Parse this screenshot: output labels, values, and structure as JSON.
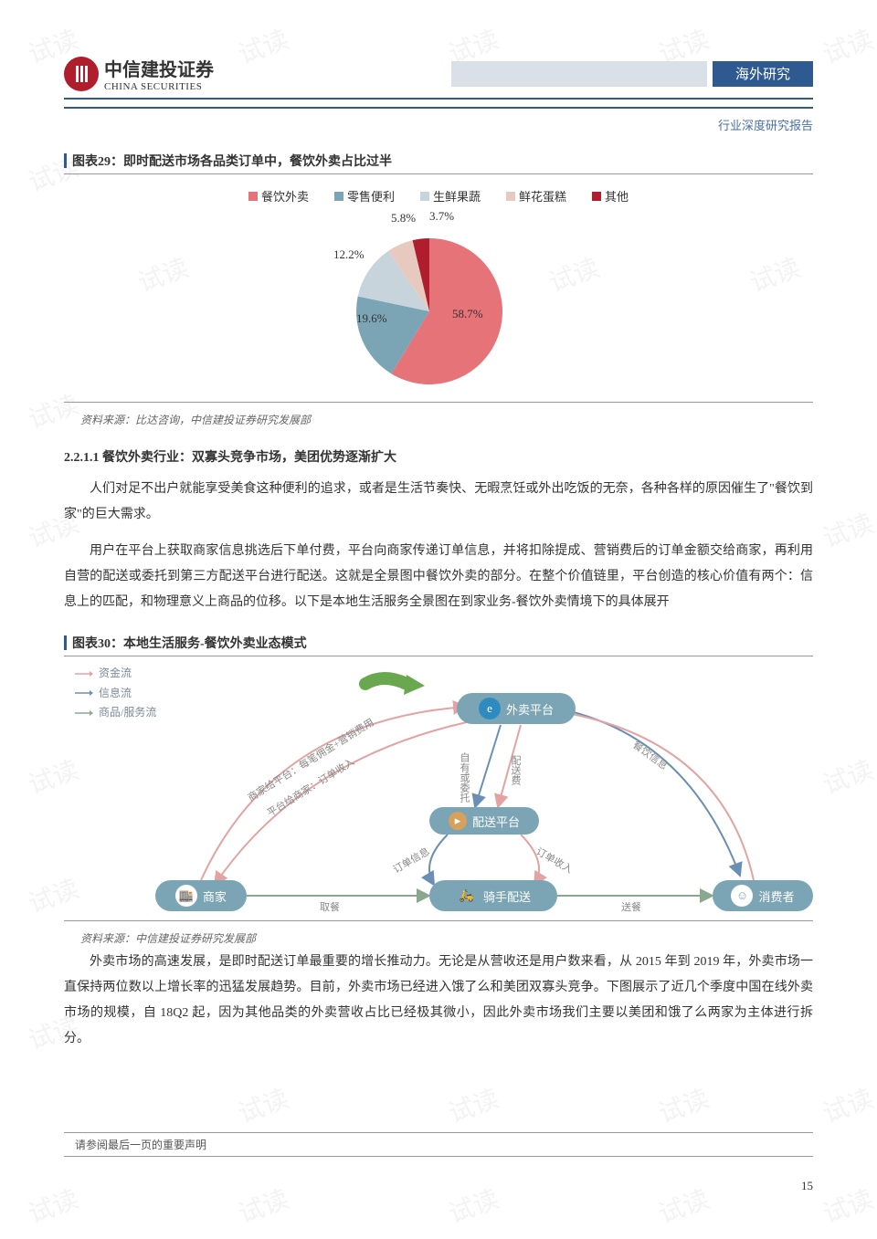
{
  "header": {
    "logo_cn": "中信建投证券",
    "logo_en": "CHINA SECURITIES",
    "category": "海外研究",
    "subtitle": "行业深度研究报告"
  },
  "figure29": {
    "label": "图表29：",
    "title": "即时配送市场各品类订单中，餐饮外卖占比过半",
    "type": "pie",
    "legend": [
      {
        "name": "餐饮外卖",
        "color": "#e57377"
      },
      {
        "name": "零售便利",
        "color": "#7ba5b5"
      },
      {
        "name": "生鲜果蔬",
        "color": "#c8d4dc"
      },
      {
        "name": "鲜花蛋糕",
        "color": "#e8c9c0"
      },
      {
        "name": "其他",
        "color": "#b01e2d"
      }
    ],
    "slices": [
      {
        "label": "58.7%",
        "value": 58.7,
        "color": "#e57377"
      },
      {
        "label": "19.6%",
        "value": 19.6,
        "color": "#7ba5b5"
      },
      {
        "label": "12.2%",
        "value": 12.2,
        "color": "#c8d4dc"
      },
      {
        "label": "5.8%",
        "value": 5.8,
        "color": "#e8c9c0"
      },
      {
        "label": "3.7%",
        "value": 3.7,
        "color": "#b01e2d"
      }
    ],
    "source": "资料来源：比达咨询，中信建投证券研究发展部"
  },
  "section": {
    "number": "2.2.1.1",
    "title": "餐饮外卖行业：双寡头竞争市场，美团优势逐渐扩大"
  },
  "paragraphs": {
    "p1": "人们对足不出户就能享受美食这种便利的追求，或者是生活节奏快、无暇烹饪或外出吃饭的无奈，各种各样的原因催生了\"餐饮到家\"的巨大需求。",
    "p2": "用户在平台上获取商家信息挑选后下单付费，平台向商家传递订单信息，并将扣除提成、营销费后的订单金额交给商家，再利用自营的配送或委托到第三方配送平台进行配送。这就是全景图中餐饮外卖的部分。在整个价值链里，平台创造的核心价值有两个：信息上的匹配，和物理意义上商品的位移。以下是本地生活服务全景图在到家业务-餐饮外卖情境下的具体展开",
    "p3": "外卖市场的高速发展，是即时配送订单最重要的增长推动力。无论是从营收还是用户数来看，从 2015 年到 2019 年，外卖市场一直保持两位数以上增长率的迅猛发展趋势。目前，外卖市场已经进入饿了么和美团双寡头竞争。下图展示了近几个季度中国在线外卖市场的规模，自 18Q2 起，因为其他品类的外卖营收占比已经极其微小，因此外卖市场我们主要以美团和饿了么两家为主体进行拆分。"
  },
  "figure30": {
    "label": "图表30：",
    "title": "本地生活服务-餐饮外卖业态模式",
    "type": "flowchart",
    "legend": {
      "l1": "资金流",
      "l2": "信息流",
      "l3": "商品/服务流"
    },
    "nodes": {
      "platform": "外卖平台",
      "delivery_platform": "配送平台",
      "merchant": "商家",
      "rider": "骑手配送",
      "consumer": "消费者"
    },
    "edge_labels": {
      "e1": "商家给平台：每笔佣金+营销费用",
      "e2": "平台给商家：订单收入",
      "e3": "餐饮信息",
      "e4": "自有或委托",
      "e5": "配送费",
      "e6": "订单信息",
      "e7": "订单收入",
      "e8": "取餐",
      "e9": "送餐"
    },
    "colors": {
      "node_fill": "#7ba5b5",
      "money_flow": "#e3a3a3",
      "info_flow": "#6a8fb5",
      "goods_flow": "#8aa88f",
      "arrow_green": "#6aa84f",
      "icon_orange": "#d9a05b",
      "icon_blue": "#2e8bc0"
    },
    "source": "资料来源：中信建投证券研究发展部"
  },
  "footer": {
    "note": "请参阅最后一页的重要声明",
    "page": "15"
  },
  "watermark": "试读"
}
